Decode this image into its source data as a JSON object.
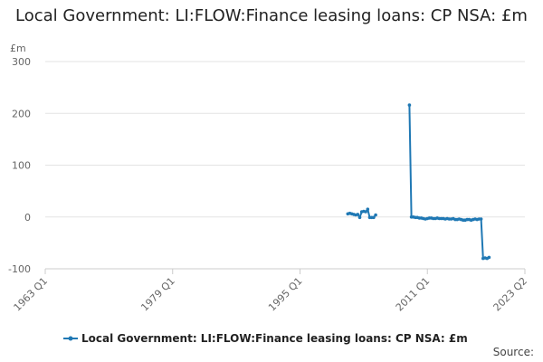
{
  "chart_data": {
    "type": "line",
    "title": "Local Government: LI:FLOW:Finance leasing loans: CP NSA: £m",
    "ylabel": "£m",
    "xlabel": "",
    "ylim": [
      -100,
      300
    ],
    "yticks": [
      -100,
      0,
      100,
      200,
      300
    ],
    "xticks": [
      "1963 Q1",
      "1979 Q1",
      "1995 Q1",
      "2011 Q1",
      "2023 Q2"
    ],
    "grid": true,
    "legend_position": "bottom",
    "series": [
      {
        "name": "Local Government: LI:FLOW:Finance leasing loans: CP NSA: £m",
        "color": "#1f78b4",
        "segments": [
          [
            {
              "x": "2001 Q1",
              "y": 6
            },
            {
              "x": "2001 Q2",
              "y": 7
            },
            {
              "x": "2001 Q3",
              "y": 6
            },
            {
              "x": "2001 Q4",
              "y": 5
            },
            {
              "x": "2002 Q1",
              "y": 4
            },
            {
              "x": "2002 Q2",
              "y": 5
            },
            {
              "x": "2002 Q3",
              "y": -1
            },
            {
              "x": "2002 Q4",
              "y": 10
            },
            {
              "x": "2003 Q1",
              "y": 11
            },
            {
              "x": "2003 Q2",
              "y": 10
            },
            {
              "x": "2003 Q3",
              "y": 15
            },
            {
              "x": "2003 Q4",
              "y": -1
            },
            {
              "x": "2004 Q1",
              "y": -1
            },
            {
              "x": "2004 Q2",
              "y": -1
            },
            {
              "x": "2004 Q3",
              "y": 4
            }
          ],
          [
            {
              "x": "2008 Q4",
              "y": 216
            },
            {
              "x": "2009 Q1",
              "y": 0
            },
            {
              "x": "2009 Q2",
              "y": 0
            },
            {
              "x": "2009 Q3",
              "y": -1
            },
            {
              "x": "2009 Q4",
              "y": -1
            },
            {
              "x": "2010 Q1",
              "y": -2
            },
            {
              "x": "2010 Q2",
              "y": -2
            },
            {
              "x": "2010 Q3",
              "y": -3
            },
            {
              "x": "2010 Q4",
              "y": -4
            },
            {
              "x": "2011 Q1",
              "y": -3
            },
            {
              "x": "2011 Q2",
              "y": -2
            },
            {
              "x": "2011 Q3",
              "y": -2
            },
            {
              "x": "2011 Q4",
              "y": -3
            },
            {
              "x": "2012 Q1",
              "y": -3
            },
            {
              "x": "2012 Q2",
              "y": -2
            },
            {
              "x": "2012 Q3",
              "y": -3
            },
            {
              "x": "2012 Q4",
              "y": -3
            },
            {
              "x": "2013 Q1",
              "y": -3
            },
            {
              "x": "2013 Q2",
              "y": -4
            },
            {
              "x": "2013 Q3",
              "y": -3
            },
            {
              "x": "2013 Q4",
              "y": -4
            },
            {
              "x": "2014 Q1",
              "y": -4
            },
            {
              "x": "2014 Q2",
              "y": -3
            },
            {
              "x": "2014 Q3",
              "y": -5
            },
            {
              "x": "2014 Q4",
              "y": -5
            },
            {
              "x": "2015 Q1",
              "y": -4
            },
            {
              "x": "2015 Q2",
              "y": -5
            },
            {
              "x": "2015 Q3",
              "y": -6
            },
            {
              "x": "2015 Q4",
              "y": -6
            },
            {
              "x": "2016 Q1",
              "y": -5
            },
            {
              "x": "2016 Q2",
              "y": -5
            },
            {
              "x": "2016 Q3",
              "y": -6
            },
            {
              "x": "2016 Q4",
              "y": -5
            },
            {
              "x": "2017 Q1",
              "y": -4
            },
            {
              "x": "2017 Q2",
              "y": -5
            },
            {
              "x": "2017 Q3",
              "y": -4
            },
            {
              "x": "2017 Q4",
              "y": -4
            },
            {
              "x": "2018 Q1",
              "y": -80
            },
            {
              "x": "2018 Q2",
              "y": -79
            },
            {
              "x": "2018 Q3",
              "y": -80
            },
            {
              "x": "2018 Q4",
              "y": -78
            }
          ]
        ]
      }
    ]
  },
  "legend": {
    "label": "Local Government: LI:FLOW:Finance leasing loans: CP NSA: £m"
  },
  "source": {
    "label": "Source:"
  }
}
